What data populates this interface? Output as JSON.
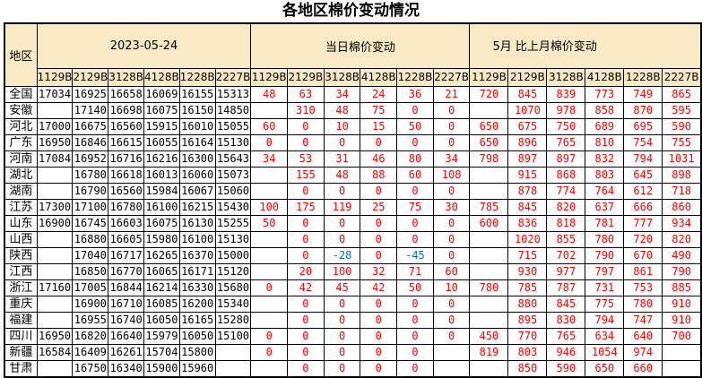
{
  "title": "各地区棉价变动情况",
  "colors": {
    "header_bg": "#FAE9C5",
    "grid": "#000000",
    "price_text": "#000000",
    "positive_change": "#FF0000",
    "negative_change": "#0070C0",
    "background": "#FFFFFF"
  },
  "chart_data": {
    "type": "table",
    "title": "各地区棉价变动情况",
    "region_header": "地区",
    "sections": [
      {
        "label": "2023-05-24",
        "columns": [
          "1129B",
          "2129B",
          "3128B",
          "4128B",
          "1228B",
          "2227B"
        ]
      },
      {
        "label": "当日棉价变动",
        "columns": [
          "1129B",
          "2129B",
          "3128B",
          "4128B",
          "1228B",
          "2227B"
        ]
      },
      {
        "label": "5月 比上月棉价变动",
        "columns": [
          "1129B",
          "2129B",
          "3128B",
          "4128B",
          "1228B",
          "2227B"
        ]
      }
    ],
    "rows": [
      {
        "region": "全国",
        "prices": [
          "17034",
          "16925",
          "16658",
          "16069",
          "16155",
          "15313"
        ],
        "daily_change": [
          "48",
          "63",
          "34",
          "24",
          "36",
          "21"
        ],
        "monthly_change": [
          "720",
          "845",
          "839",
          "773",
          "749",
          "865"
        ]
      },
      {
        "region": "安徽",
        "prices": [
          "",
          "17140",
          "16698",
          "16075",
          "16150",
          "14850"
        ],
        "daily_change": [
          "",
          "310",
          "48",
          "75",
          "0",
          "0"
        ],
        "monthly_change": [
          "",
          "1070",
          "978",
          "858",
          "870",
          "595"
        ]
      },
      {
        "region": "河北",
        "prices": [
          "17000",
          "16675",
          "16560",
          "15915",
          "16010",
          "15055"
        ],
        "daily_change": [
          "60",
          "0",
          "10",
          "15",
          "50",
          "0"
        ],
        "monthly_change": [
          "650",
          "675",
          "750",
          "689",
          "695",
          "590"
        ]
      },
      {
        "region": "广东",
        "prices": [
          "16950",
          "16846",
          "16615",
          "16055",
          "16164",
          "15130"
        ],
        "daily_change": [
          "0",
          "0",
          "0",
          "0",
          "0",
          "0"
        ],
        "monthly_change": [
          "650",
          "896",
          "765",
          "810",
          "754",
          "755"
        ]
      },
      {
        "region": "河南",
        "prices": [
          "17084",
          "16952",
          "16716",
          "16216",
          "16300",
          "15643"
        ],
        "daily_change": [
          "34",
          "53",
          "31",
          "46",
          "80",
          "34"
        ],
        "monthly_change": [
          "798",
          "897",
          "897",
          "832",
          "794",
          "1031"
        ]
      },
      {
        "region": "湖北",
        "prices": [
          "",
          "16780",
          "16618",
          "16013",
          "16060",
          "15073"
        ],
        "daily_change": [
          "",
          "155",
          "48",
          "88",
          "60",
          "108"
        ],
        "monthly_change": [
          "",
          "915",
          "868",
          "803",
          "645",
          "898"
        ]
      },
      {
        "region": "湖南",
        "prices": [
          "",
          "16790",
          "16560",
          "15984",
          "16067",
          "15060"
        ],
        "daily_change": [
          "",
          "0",
          "0",
          "0",
          "0",
          "0"
        ],
        "monthly_change": [
          "",
          "878",
          "774",
          "764",
          "612",
          "718"
        ]
      },
      {
        "region": "江苏",
        "prices": [
          "17300",
          "17100",
          "16780",
          "16100",
          "16215",
          "15430"
        ],
        "daily_change": [
          "100",
          "175",
          "119",
          "25",
          "75",
          "30"
        ],
        "monthly_change": [
          "785",
          "845",
          "820",
          "637",
          "666",
          "860"
        ]
      },
      {
        "region": "山东",
        "prices": [
          "16900",
          "16745",
          "16603",
          "16075",
          "16130",
          "15255"
        ],
        "daily_change": [
          "50",
          "0",
          "0",
          "0",
          "0",
          "0"
        ],
        "monthly_change": [
          "600",
          "836",
          "818",
          "781",
          "777",
          "934"
        ]
      },
      {
        "region": "山西",
        "prices": [
          "",
          "16880",
          "16605",
          "15980",
          "16100",
          "15130"
        ],
        "daily_change": [
          "",
          "0",
          "0",
          "0",
          "0",
          "0"
        ],
        "monthly_change": [
          "",
          "1020",
          "855",
          "780",
          "720",
          "820"
        ]
      },
      {
        "region": "陕西",
        "prices": [
          "",
          "17040",
          "16717",
          "16265",
          "16370",
          "15000"
        ],
        "daily_change": [
          "",
          "0",
          "-28",
          "0",
          "-45",
          "0"
        ],
        "monthly_change": [
          "",
          "715",
          "702",
          "790",
          "670",
          "490"
        ]
      },
      {
        "region": "江西",
        "prices": [
          "",
          "16850",
          "16770",
          "16065",
          "16171",
          "15120"
        ],
        "daily_change": [
          "",
          "20",
          "100",
          "32",
          "71",
          "60"
        ],
        "monthly_change": [
          "",
          "930",
          "977",
          "797",
          "861",
          "790"
        ]
      },
      {
        "region": "浙江",
        "prices": [
          "17160",
          "17005",
          "16844",
          "16214",
          "16330",
          "15680"
        ],
        "daily_change": [
          "0",
          "42",
          "45",
          "42",
          "50",
          "10"
        ],
        "monthly_change": [
          "780",
          "785",
          "787",
          "731",
          "753",
          "885"
        ]
      },
      {
        "region": "重庆",
        "prices": [
          "",
          "16900",
          "16710",
          "16085",
          "16200",
          "15340"
        ],
        "daily_change": [
          "",
          "0",
          "0",
          "0",
          "0",
          "0"
        ],
        "monthly_change": [
          "",
          "880",
          "845",
          "775",
          "780",
          "910"
        ]
      },
      {
        "region": "福建",
        "prices": [
          "",
          "16955",
          "16740",
          "16050",
          "16165",
          "15280"
        ],
        "daily_change": [
          "",
          "0",
          "0",
          "0",
          "0",
          "0"
        ],
        "monthly_change": [
          "",
          "895",
          "830",
          "794",
          "747",
          "910"
        ]
      },
      {
        "region": "四川",
        "prices": [
          "16950",
          "16820",
          "16640",
          "15979",
          "16050",
          "15100"
        ],
        "daily_change": [
          "0",
          "0",
          "0",
          "0",
          "0",
          "0"
        ],
        "monthly_change": [
          "450",
          "770",
          "765",
          "634",
          "640",
          "700"
        ]
      },
      {
        "region": "新疆",
        "prices": [
          "16584",
          "16409",
          "16261",
          "15704",
          "15800",
          ""
        ],
        "daily_change": [
          "0",
          "0",
          "0",
          "0",
          "0",
          ""
        ],
        "monthly_change": [
          "819",
          "803",
          "946",
          "1054",
          "974",
          ""
        ]
      },
      {
        "region": "甘肃",
        "prices": [
          "",
          "16750",
          "16340",
          "15900",
          "15960",
          ""
        ],
        "daily_change": [
          "",
          "0",
          "0",
          "0",
          "0",
          ""
        ],
        "monthly_change": [
          "",
          "850",
          "590",
          "650",
          "660",
          ""
        ]
      }
    ]
  }
}
